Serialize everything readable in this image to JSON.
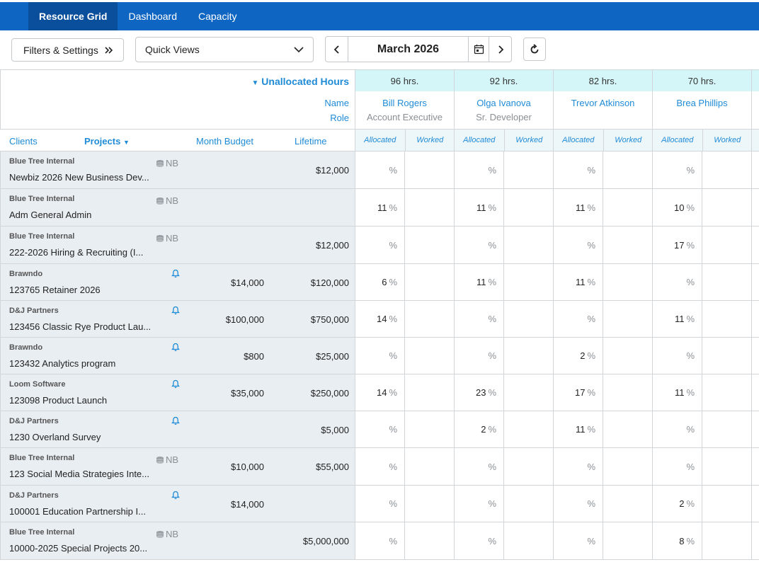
{
  "nav": {
    "tabs": [
      {
        "label": "Resource Grid",
        "active": true
      },
      {
        "label": "Dashboard",
        "active": false
      },
      {
        "label": "Capacity",
        "active": false
      }
    ]
  },
  "toolbar": {
    "filters_label": "Filters & Settings",
    "quick_views_label": "Quick Views",
    "month_label": "March 2026"
  },
  "grid": {
    "unallocated_label": "Unallocated Hours",
    "name_label": "Name",
    "role_label": "Role",
    "col_clients": "Clients",
    "col_projects": "Projects",
    "col_month_budget": "Month Budget",
    "col_lifetime": "Lifetime",
    "sub_allocated": "Allocated",
    "sub_worked": "Worked",
    "people": [
      {
        "hours": "96 hrs.",
        "name": "Bill Rogers",
        "role": "Account Executive"
      },
      {
        "hours": "92 hrs.",
        "name": "Olga Ivanova",
        "role": "Sr. Developer"
      },
      {
        "hours": "82 hrs.",
        "name": "Trevor Atkinson",
        "role": ""
      },
      {
        "hours": "70 hrs.",
        "name": "Brea Phillips",
        "role": ""
      }
    ],
    "rows": [
      {
        "client": "Blue Tree Internal",
        "project": "Newbiz 2026 New Business Dev...",
        "badge": "NB",
        "bell": false,
        "budget": "",
        "lifetime": "$12,000",
        "alloc": [
          "",
          "",
          "",
          ""
        ]
      },
      {
        "client": "Blue Tree Internal",
        "project": "Adm General Admin",
        "badge": "NB",
        "bell": false,
        "budget": "",
        "lifetime": "",
        "alloc": [
          "11",
          "11",
          "11",
          "10"
        ]
      },
      {
        "client": "Blue Tree Internal",
        "project": "222-2026 Hiring & Recruiting (I...",
        "badge": "NB",
        "bell": false,
        "budget": "",
        "lifetime": "$12,000",
        "alloc": [
          "",
          "",
          "",
          "17"
        ]
      },
      {
        "client": "Brawndo",
        "project": "123765 Retainer 2026",
        "badge": "",
        "bell": true,
        "budget": "$14,000",
        "lifetime": "$120,000",
        "alloc": [
          "6",
          "11",
          "11",
          ""
        ]
      },
      {
        "client": "D&J Partners",
        "project": "123456 Classic Rye Product Lau...",
        "badge": "",
        "bell": true,
        "budget": "$100,000",
        "lifetime": "$750,000",
        "alloc": [
          "14",
          "",
          "",
          "11"
        ]
      },
      {
        "client": "Brawndo",
        "project": "123432 Analytics program",
        "badge": "",
        "bell": true,
        "budget": "$800",
        "lifetime": "$25,000",
        "alloc": [
          "",
          "",
          "2",
          ""
        ]
      },
      {
        "client": "Loom Software",
        "project": "123098 Product Launch",
        "badge": "",
        "bell": true,
        "budget": "$35,000",
        "lifetime": "$250,000",
        "alloc": [
          "14",
          "23",
          "17",
          "11"
        ]
      },
      {
        "client": "D&J Partners",
        "project": "1230 Overland Survey",
        "badge": "",
        "bell": true,
        "budget": "",
        "lifetime": "$5,000",
        "alloc": [
          "",
          "2",
          "11",
          ""
        ]
      },
      {
        "client": "Blue Tree Internal",
        "project": "123 Social Media Strategies Inte...",
        "badge": "NB",
        "bell": false,
        "budget": "$10,000",
        "lifetime": "$55,000",
        "alloc": [
          "",
          "",
          "",
          ""
        ]
      },
      {
        "client": "D&J Partners",
        "project": "100001 Education Partnership I...",
        "badge": "",
        "bell": true,
        "budget": "$14,000",
        "lifetime": "",
        "alloc": [
          "",
          "",
          "",
          "2"
        ]
      },
      {
        "client": "Blue Tree Internal",
        "project": "10000-2025 Special Projects 20...",
        "badge": "NB",
        "bell": false,
        "budget": "",
        "lifetime": "$5,000,000",
        "alloc": [
          "",
          "",
          "",
          "8"
        ]
      }
    ],
    "percent_symbol": "%"
  },
  "colors": {
    "nav_bg": "#0f66c2",
    "nav_active": "#0a4f9b",
    "link_blue": "#1f8bd6",
    "hours_bg": "#d5f6f8",
    "row_left_bg": "#e9eef3"
  }
}
